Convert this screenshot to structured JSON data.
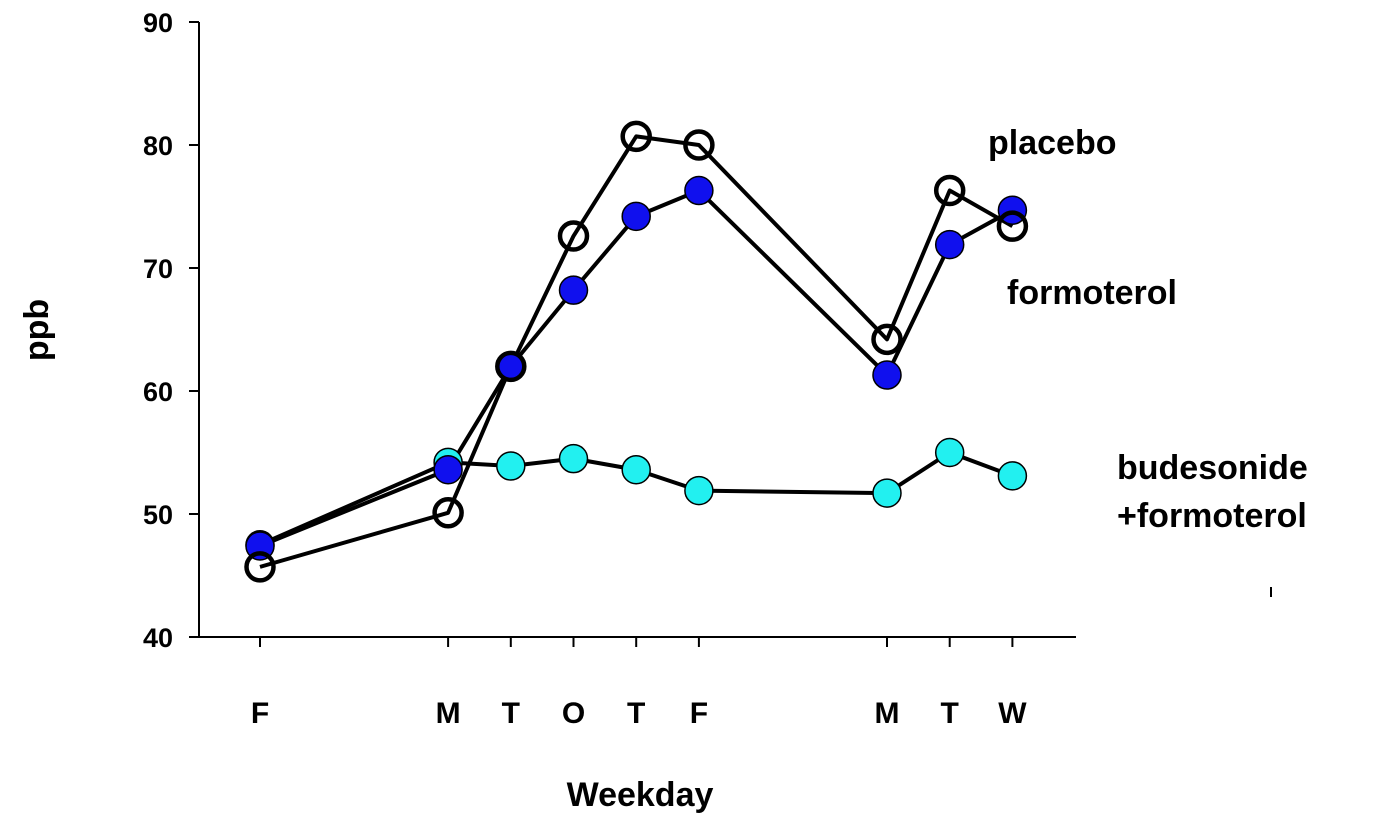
{
  "chart_data": {
    "type": "line",
    "title": "",
    "xlabel": "Weekday",
    "ylabel": "ppb",
    "ylim": [
      40,
      90
    ],
    "yticks": [
      40,
      50,
      60,
      70,
      80,
      90
    ],
    "categories": [
      "F",
      "M",
      "T",
      "O",
      "T",
      "F",
      "M",
      "T",
      "W"
    ],
    "x": [
      0,
      3,
      4,
      5,
      6,
      7,
      10,
      11,
      12
    ],
    "xlim": [
      -1,
      13
    ],
    "grid": false,
    "legend": "none",
    "series": [
      {
        "name": "placebo",
        "label": "placebo",
        "marker": "open-circle",
        "color": "#000000",
        "values": [
          45.7,
          50.1,
          62.0,
          72.6,
          80.7,
          80.0,
          64.2,
          76.3,
          73.4
        ]
      },
      {
        "name": "formoterol",
        "label": "formoterol",
        "marker": "filled-circle",
        "color": "#1010ee",
        "values": [
          47.4,
          53.6,
          62.0,
          68.2,
          74.2,
          76.3,
          61.3,
          71.9,
          74.7
        ]
      },
      {
        "name": "budesonide +formoterol",
        "label_lines": [
          "budesonide",
          "+formoterol"
        ],
        "marker": "filled-circle",
        "color": "#22f0f0",
        "values": [
          47.5,
          54.2,
          53.9,
          54.5,
          53.6,
          51.9,
          51.7,
          55.0,
          53.1
        ]
      }
    ]
  }
}
